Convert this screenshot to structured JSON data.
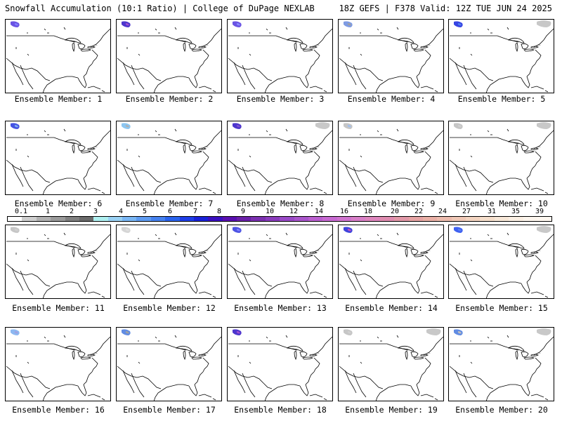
{
  "header": {
    "title_left": "Snowfall Accumulation (10:1 Ratio) | College of DuPage NEXLAB",
    "title_right": "18Z GEFS | F378 Valid: 12Z TUE JUN 24 2025"
  },
  "legend": {
    "labels": [
      "0.1",
      "1",
      "2",
      "3",
      "4",
      "5",
      "6",
      "7",
      "8",
      "9",
      "10",
      "12",
      "14",
      "16",
      "18",
      "20",
      "22",
      "24",
      "27",
      "31",
      "35",
      "39"
    ],
    "colors": [
      "#ffffff",
      "#cfcfcf",
      "#b2b2b2",
      "#9a9a9a",
      "#808080",
      "#6a6a6a",
      "#aef0f0",
      "#9ad2f5",
      "#7ab7f5",
      "#5f9cf2",
      "#4682f0",
      "#2a64ee",
      "#1f3fe8",
      "#1a22d8",
      "#3b10c0",
      "#5a10b0",
      "#6a20a8",
      "#7b30b0",
      "#8a3cbc",
      "#9a4ac8",
      "#aa56cc",
      "#bb60d0",
      "#c86ad2",
      "#d074cf",
      "#d87fc8",
      "#de86bd",
      "#e08cb0",
      "#e298a8",
      "#e6a4a4",
      "#eab0a6",
      "#edbcae",
      "#f0c8b6",
      "#f3d4c0",
      "#f6dfcc",
      "#f8e8d8",
      "#fbf0e4",
      "#fdf6ee",
      "#fff8f0"
    ]
  },
  "members": [
    {
      "label": "Ensemble Member: 1",
      "snow": [
        "#5a40e0",
        "#8080ff"
      ],
      "ne": false
    },
    {
      "label": "Ensemble Member: 2",
      "snow": [
        "#3a20c8",
        "#a050d0"
      ],
      "ne": false
    },
    {
      "label": "Ensemble Member: 3",
      "snow": [
        "#5a40e0",
        "#8a8aff"
      ],
      "ne": false
    },
    {
      "label": "Ensemble Member: 4",
      "snow": [
        "#7090e0",
        "#a0a0a0"
      ],
      "ne": false
    },
    {
      "label": "Ensemble Member: 5",
      "snow": [
        "#2030e0",
        "#5080f0"
      ],
      "ne": true
    },
    {
      "label": "Ensemble Member: 6",
      "snow": [
        "#3040e0",
        "#80b0f0"
      ],
      "ne": false
    },
    {
      "label": "Ensemble Member: 7",
      "snow": [
        "#80c0f0",
        "#b0b0b0"
      ],
      "ne": false
    },
    {
      "label": "Ensemble Member: 8",
      "snow": [
        "#3a20c8",
        "#8050d0"
      ],
      "ne": true
    },
    {
      "label": "Ensemble Member: 9",
      "snow": [
        "#c0c0c0",
        "#a0c0f0"
      ],
      "ne": false
    },
    {
      "label": "Ensemble Member: 10",
      "snow": [
        "#c0c0c0",
        "#d0d0d0"
      ],
      "ne": true
    },
    {
      "label": "Ensemble Member: 11",
      "snow": [
        "#c0c0c0",
        "#d0d0d0"
      ],
      "ne": false
    },
    {
      "label": "Ensemble Member: 12",
      "snow": [
        "#d0d0d0",
        "#e0e0e0"
      ],
      "ne": false
    },
    {
      "label": "Ensemble Member: 13",
      "snow": [
        "#3a40e0",
        "#8080ff"
      ],
      "ne": false
    },
    {
      "label": "Ensemble Member: 14",
      "snow": [
        "#2a30d8",
        "#c050c0"
      ],
      "ne": false
    },
    {
      "label": "Ensemble Member: 15",
      "snow": [
        "#2a50f0",
        "#5a80f0"
      ],
      "ne": true
    },
    {
      "label": "Ensemble Member: 16",
      "snow": [
        "#80b0f0",
        "#a0a0e0"
      ],
      "ne": false
    },
    {
      "label": "Ensemble Member: 17",
      "snow": [
        "#5080e0",
        "#a0a0a0"
      ],
      "ne": false
    },
    {
      "label": "Ensemble Member: 18",
      "snow": [
        "#3a20c8",
        "#a050d0"
      ],
      "ne": false
    },
    {
      "label": "Ensemble Member: 19",
      "snow": [
        "#c0c0c0",
        "#d0d0d0"
      ],
      "ne": true
    },
    {
      "label": "Ensemble Member: 20",
      "snow": [
        "#5080e0",
        "#c0c0c0"
      ],
      "ne": true
    }
  ]
}
